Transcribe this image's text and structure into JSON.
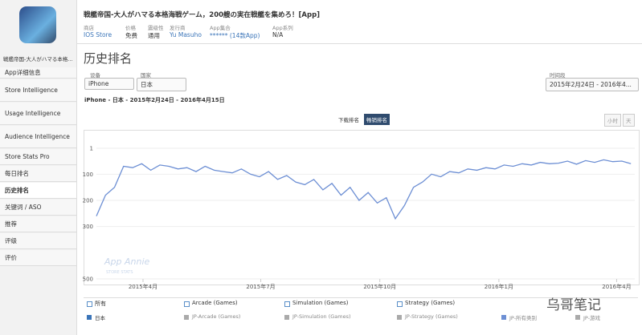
{
  "app": {
    "name": "戦艦帝国-大人がハマる本格...",
    "title": "戦艦帝国-大人がハマる本格海戦ゲーム，200艘の実在戦艦を集めろ！[App]",
    "info": [
      {
        "label": "商店",
        "value": "IOS Store"
      },
      {
        "label": "价格",
        "value": "免费"
      },
      {
        "label": "震级性",
        "value": "通用"
      },
      {
        "label": "发行商",
        "value": "Yu Masuho"
      },
      {
        "label": "App集合",
        "value": "****** (14款App)"
      },
      {
        "label": "App系列",
        "value": "N/A"
      }
    ]
  },
  "sidebar": {
    "items": [
      "App详细信息",
      "Store Intelligence",
      "Usage Intelligence",
      "Audience Intelligence",
      "Store Stats Pro",
      "每日排名",
      "历史排名",
      "关键词 / ASO",
      "推荐",
      "评级",
      "评价"
    ],
    "active": 6
  },
  "page_title": "历史排名",
  "filters": {
    "device_label": "设备",
    "device": "iPhone",
    "country_label": "国家",
    "country": "日本",
    "period_label": "时间段",
    "period": "2015年2月24日 - 2016年4..."
  },
  "summary": "iPhone - 日本 - 2015年2月24日 - 2016年4月15日",
  "toggles": {
    "ranking": [
      "下载排名",
      "畅销排名"
    ],
    "ranking_active": 1,
    "granularity": [
      "小时",
      "天"
    ]
  },
  "watermark": "App Annie",
  "watermark_sub": "STORE STATS",
  "brand": "乌哥笔记",
  "legend": {
    "row1": [
      "所有",
      "Arcade (Games)",
      "Simulation (Games)",
      "Strategy (Games)"
    ],
    "row2": [
      "日本",
      "JP-Arcade (Games)",
      "JP-Simulation (Games)",
      "JP-Strategy (Games)",
      "JP-所有类别",
      "JP-游戏"
    ]
  },
  "chart_data": {
    "type": "line",
    "color": "#6d8fd4",
    "reversed": true,
    "grid": true,
    "x": [
      "2015-02-24",
      "2015-03-03",
      "2015-03-10",
      "2015-03-17",
      "2015-03-24",
      "2015-03-31",
      "2015-04-07",
      "2015-04-14",
      "2015-04-21",
      "2015-04-28",
      "2015-05-05",
      "2015-05-12",
      "2015-05-19",
      "2015-05-26",
      "2015-06-02",
      "2015-06-09",
      "2015-06-16",
      "2015-06-23",
      "2015-06-30",
      "2015-07-07",
      "2015-07-14",
      "2015-07-21",
      "2015-07-28",
      "2015-08-04",
      "2015-08-11",
      "2015-08-18",
      "2015-08-25",
      "2015-09-01",
      "2015-09-08",
      "2015-09-15",
      "2015-09-22",
      "2015-09-29",
      "2015-10-06",
      "2015-10-13",
      "2015-10-20",
      "2015-10-27",
      "2015-11-03",
      "2015-11-10",
      "2015-11-17",
      "2015-11-24",
      "2015-12-01",
      "2015-12-08",
      "2015-12-15",
      "2015-12-22",
      "2015-12-29",
      "2016-01-05",
      "2016-01-12",
      "2016-01-19",
      "2016-01-26",
      "2016-02-02",
      "2016-02-09",
      "2016-02-16",
      "2016-02-23",
      "2016-03-01",
      "2016-03-08",
      "2016-03-15",
      "2016-03-22",
      "2016-03-29",
      "2016-04-05",
      "2016-04-12"
    ],
    "values": [
      260,
      180,
      150,
      70,
      75,
      60,
      85,
      65,
      70,
      80,
      75,
      90,
      70,
      85,
      90,
      95,
      80,
      100,
      110,
      90,
      120,
      105,
      130,
      140,
      120,
      160,
      135,
      180,
      150,
      200,
      170,
      210,
      190,
      270,
      220,
      150,
      130,
      100,
      110,
      90,
      95,
      80,
      85,
      75,
      80,
      65,
      70,
      60,
      65,
      55,
      60,
      58,
      50,
      62,
      48,
      55,
      45,
      52,
      50,
      60
    ],
    "xlim": [
      "2015-02-24",
      "2016-04-15"
    ],
    "xticks": [
      {
        "value": "2015-04-01",
        "label": "2015年4月"
      },
      {
        "value": "2015-07-01",
        "label": "2015年7月"
      },
      {
        "value": "2015-10-01",
        "label": "2015年10月"
      },
      {
        "value": "2016-01-01",
        "label": "2016年1月"
      },
      {
        "value": "2016-04-01",
        "label": "2016年4月"
      }
    ],
    "ylim": [
      1,
      500
    ],
    "yticks": [
      1,
      100,
      200,
      300,
      500
    ]
  }
}
